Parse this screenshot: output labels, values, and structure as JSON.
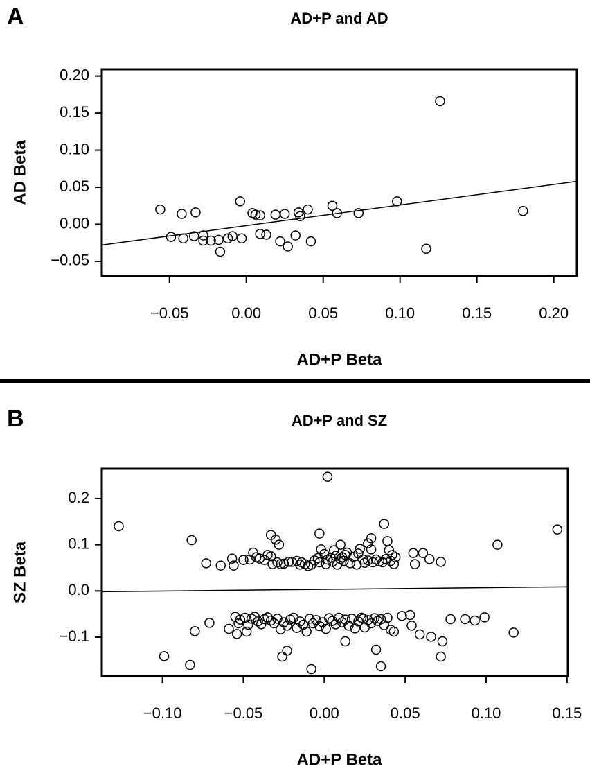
{
  "chart_data": [
    {
      "type": "scatter",
      "panel": "A",
      "title": "AD+P and AD",
      "xlabel": "AD+P Beta",
      "ylabel": "AD Beta",
      "xlim": [
        -0.094,
        0.215
      ],
      "ylim": [
        -0.0697,
        0.209
      ],
      "xticks": [
        {
          "value": -0.05,
          "label": "−0.05"
        },
        {
          "value": 0,
          "label": "0.00"
        },
        0.05,
        {
          "value": 0.1,
          "label": "0.10"
        },
        0.15,
        {
          "value": 0.2,
          "label": "0.20"
        }
      ],
      "yticks": [
        {
          "value": -0.05,
          "label": "−0.05"
        },
        {
          "value": 0,
          "label": "0.00"
        },
        0.05,
        {
          "value": 0.1,
          "label": "0.10"
        },
        0.15,
        {
          "value": 0.2,
          "label": "0.20"
        }
      ],
      "x": [
        -0.056,
        -0.049,
        -0.042,
        -0.041,
        -0.033,
        -0.034,
        -0.028,
        -0.028,
        -0.023,
        -0.018,
        -0.017,
        -0.012,
        -0.009,
        -0.004,
        -0.003,
        0.004,
        0.006,
        0.009,
        0.009,
        0.013,
        0.019,
        0.022,
        0.025,
        0.027,
        0.032,
        0.034,
        0.035,
        0.04,
        0.042,
        0.056,
        0.059,
        0.073,
        0.098,
        0.117,
        0.126,
        0.18
      ],
      "y": [
        0.02,
        -0.017,
        0.014,
        -0.019,
        0.016,
        -0.016,
        -0.015,
        -0.022,
        -0.022,
        -0.021,
        -0.037,
        -0.019,
        -0.016,
        0.031,
        -0.019,
        0.015,
        0.013,
        0.012,
        -0.013,
        -0.014,
        0.013,
        -0.023,
        0.014,
        -0.03,
        -0.015,
        0.016,
        0.011,
        0.02,
        -0.023,
        0.025,
        0.015,
        0.015,
        0.031,
        -0.033,
        0.166,
        0.018
      ],
      "fit_line": {
        "x": [
          -0.094,
          0.215
        ],
        "y": [
          -0.028,
          0.058
        ]
      }
    },
    {
      "type": "scatter",
      "panel": "B",
      "title": "AD+P and SZ",
      "xlabel": "AD+P Beta",
      "ylabel": "SZ Beta",
      "xlim": [
        -0.1375,
        0.1505
      ],
      "ylim": [
        -0.184,
        0.2645
      ],
      "xticks": [
        {
          "value": -0.1,
          "label": "−0.10"
        },
        {
          "value": -0.05,
          "label": "−0.05"
        },
        {
          "value": 0,
          "label": "0.00"
        },
        0.05,
        {
          "value": 0.1,
          "label": "0.10"
        },
        0.15
      ],
      "yticks": [
        {
          "value": -0.1,
          "label": "−0.1"
        },
        {
          "value": 0,
          "label": "0.0"
        },
        0.1,
        0.2
      ],
      "x": [
        -0.127,
        -0.082,
        -0.073,
        -0.064,
        -0.057,
        -0.056,
        0.002,
        -0.003,
        0.037,
        0.029,
        -0.033,
        -0.03,
        -0.028,
        0.01,
        0.027,
        0.039,
        0.107,
        0.144,
        0.055,
        0.061,
        0.065,
        0.072,
        0.056,
        -0.044,
        -0.042,
        -0.04,
        -0.037,
        -0.035,
        -0.033,
        -0.032,
        -0.029,
        -0.027,
        -0.025,
        -0.02,
        -0.017,
        -0.014,
        -0.012,
        -0.01,
        -0.008,
        -0.006,
        -0.004,
        -0.003,
        -0.002,
        0.0,
        0.001,
        0.002,
        0.004,
        0.005,
        0.006,
        0.007,
        0.008,
        0.01,
        0.011,
        0.012,
        0.013,
        0.014,
        0.016,
        0.018,
        0.02,
        0.021,
        0.022,
        0.024,
        0.025,
        0.027,
        0.029,
        0.03,
        0.032,
        0.034,
        0.036,
        0.038,
        0.04,
        0.041,
        0.042,
        0.043,
        0.044,
        -0.046,
        -0.05,
        -0.022,
        -0.015,
        -0.099,
        -0.083,
        -0.08,
        -0.071,
        -0.059,
        -0.054,
        -0.026,
        -0.023,
        -0.008,
        0.013,
        0.032,
        0.035,
        0.072,
        0.073,
        0.066,
        0.059,
        0.078,
        0.087,
        0.093,
        0.099,
        0.117,
        0.054,
        0.048,
        0.053,
        -0.055,
        -0.052,
        -0.049,
        -0.047,
        -0.045,
        -0.043,
        -0.041,
        -0.039,
        -0.037,
        -0.035,
        -0.033,
        -0.031,
        -0.029,
        -0.027,
        -0.025,
        -0.023,
        -0.021,
        -0.019,
        -0.017,
        -0.015,
        -0.013,
        -0.011,
        -0.009,
        -0.007,
        -0.005,
        -0.003,
        -0.001,
        0.001,
        0.003,
        0.005,
        0.007,
        0.009,
        0.011,
        0.013,
        0.015,
        0.017,
        0.019,
        0.021,
        0.023,
        0.025,
        0.027,
        0.029,
        0.031,
        0.033,
        0.035,
        0.037,
        0.039,
        0.041,
        0.043,
        -0.053,
        -0.048,
        0.024
      ],
      "y": [
        0.14,
        0.11,
        0.06,
        0.055,
        0.07,
        0.055,
        0.247,
        0.124,
        0.145,
        0.114,
        0.121,
        0.111,
        0.1,
        0.1,
        0.103,
        0.108,
        0.1,
        0.133,
        0.082,
        0.082,
        0.069,
        0.063,
        0.058,
        0.083,
        0.073,
        0.07,
        0.067,
        0.078,
        0.075,
        0.058,
        0.062,
        0.058,
        0.059,
        0.063,
        0.065,
        0.062,
        0.058,
        0.054,
        0.057,
        0.066,
        0.071,
        0.062,
        0.09,
        0.08,
        0.058,
        0.068,
        0.072,
        0.063,
        0.088,
        0.076,
        0.057,
        0.069,
        0.073,
        0.065,
        0.078,
        0.083,
        0.06,
        0.074,
        0.057,
        0.081,
        0.091,
        0.068,
        0.061,
        0.066,
        0.09,
        0.062,
        0.068,
        0.064,
        0.062,
        0.069,
        0.088,
        0.065,
        0.078,
        0.058,
        0.073,
        0.068,
        0.067,
        0.063,
        0.057,
        -0.141,
        -0.16,
        -0.087,
        -0.069,
        -0.082,
        -0.093,
        -0.142,
        -0.129,
        -0.169,
        -0.109,
        -0.127,
        -0.163,
        -0.142,
        -0.109,
        -0.099,
        -0.094,
        -0.061,
        -0.061,
        -0.064,
        -0.057,
        -0.09,
        -0.075,
        -0.054,
        -0.052,
        -0.056,
        -0.062,
        -0.058,
        -0.073,
        -0.06,
        -0.056,
        -0.066,
        -0.072,
        -0.061,
        -0.057,
        -0.064,
        -0.07,
        -0.06,
        -0.083,
        -0.068,
        -0.075,
        -0.062,
        -0.058,
        -0.08,
        -0.066,
        -0.073,
        -0.088,
        -0.06,
        -0.07,
        -0.063,
        -0.076,
        -0.068,
        -0.082,
        -0.059,
        -0.065,
        -0.072,
        -0.058,
        -0.068,
        -0.062,
        -0.075,
        -0.06,
        -0.081,
        -0.066,
        -0.058,
        -0.079,
        -0.063,
        -0.07,
        -0.059,
        -0.065,
        -0.061,
        -0.074,
        -0.058,
        -0.084,
        -0.088,
        -0.07,
        -0.088,
        -0.06
      ],
      "fit_line": {
        "x": [
          -0.1375,
          0.1505
        ],
        "y": [
          -0.0015,
          0.009
        ]
      }
    }
  ]
}
